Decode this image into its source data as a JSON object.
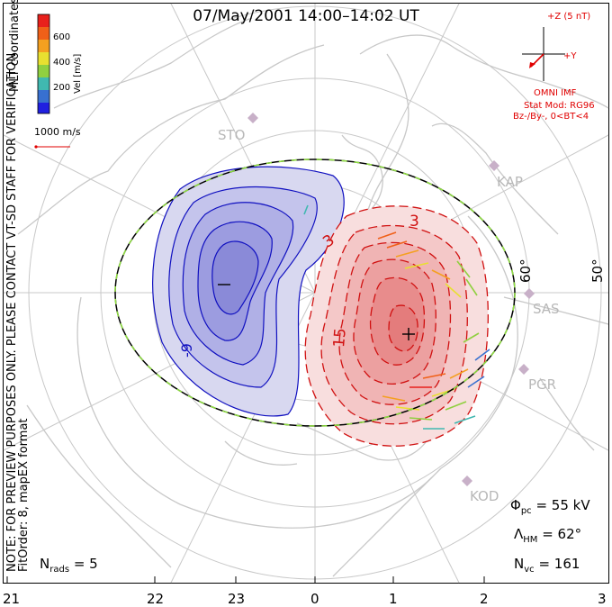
{
  "title": "07/May/2001  14:00–14:02  UT",
  "colorbar": {
    "ticks": [
      "600",
      "400",
      "200"
    ],
    "label": "Vel [m/s]",
    "colors": [
      "#e8201c",
      "#f06018",
      "#f4a020",
      "#e8e030",
      "#90d040",
      "#40b8b0",
      "#3870d0",
      "#2020e0"
    ]
  },
  "coordinates_label": "MLT coordinates",
  "reference_vector_label": "1000 m/s",
  "notice": "NOTE: FOR PREVIEW PURPOSES ONLY. PLEASE CONTACT VT-SD STAFF FOR VERIFICATION.",
  "fit_info": "FitOrder: 8, mapEX format",
  "imf": {
    "z_label": "+Z (5 nT)",
    "y_label": "+Y",
    "source": "OMNI IMF",
    "model": "Stat Mod: RG96",
    "bin": "Bz-/By-, 0<BT<4"
  },
  "stations": [
    "STO",
    "KAP",
    "SAS",
    "PGR",
    "KOD"
  ],
  "latitude_labels": [
    "60°",
    "50°"
  ],
  "contour_labels": [
    "-9",
    "3",
    "3",
    "15"
  ],
  "stats": {
    "phi_pc_symbol": "Φ",
    "phi_pc_sub": "pc",
    "phi_pc_value": "= 55 kV",
    "lambda_symbol": "Λ",
    "lambda_sub": "HM",
    "lambda_value": "= 62°",
    "nvc_symbol": "N",
    "nvc_sub": "vc",
    "nvc_value": "= 161",
    "nrads_symbol": "N",
    "nrads_sub": "rads",
    "nrads_value": "= 5"
  },
  "mlt_ticks": [
    "21",
    "22",
    "23",
    "0",
    "1",
    "2",
    "3"
  ]
}
